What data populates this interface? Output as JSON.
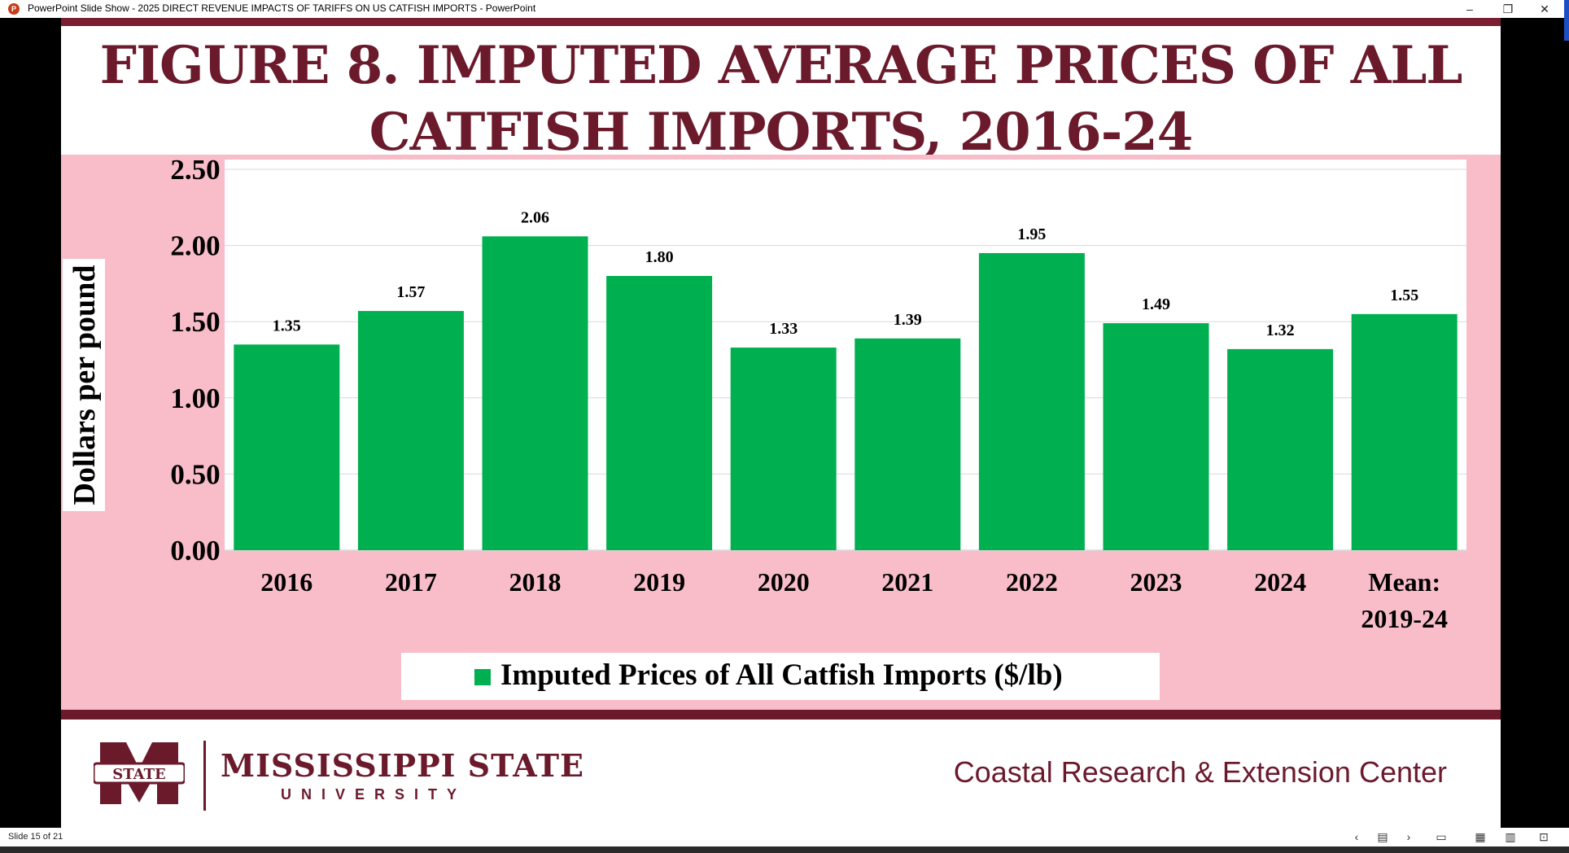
{
  "window": {
    "app_icon_letter": "P",
    "title": "PowerPoint Slide Show  -  2025 DIRECT REVENUE IMPACTS OF TARIFFS ON US CATFISH IMPORTS - PowerPoint",
    "minimize": "–",
    "restore": "❐",
    "close": "✕"
  },
  "slide": {
    "title_line1": "FIGURE 8. IMPUTED AVERAGE PRICES OF ALL",
    "title_line2": "CATFISH IMPORTS, 2016-24",
    "footer": {
      "university_name": "MISSISSIPPI STATE",
      "university_sub": "UNIVERSITY",
      "logo_text": "STATE",
      "center_name": "Coastal Research & Extension Center"
    },
    "colors": {
      "maroon": "#6b1a2c",
      "panel": "#f8bdc9",
      "bar": "#00b050"
    }
  },
  "chart_data": {
    "type": "bar",
    "categories": [
      "2016",
      "2017",
      "2018",
      "2019",
      "2020",
      "2021",
      "2022",
      "2023",
      "2024",
      "Mean: 2019-24"
    ],
    "category_lines": [
      [
        "2016"
      ],
      [
        "2017"
      ],
      [
        "2018"
      ],
      [
        "2019"
      ],
      [
        "2020"
      ],
      [
        "2021"
      ],
      [
        "2022"
      ],
      [
        "2023"
      ],
      [
        "2024"
      ],
      [
        "Mean:",
        "2019-24"
      ]
    ],
    "series": [
      {
        "name": "Imputed Prices of All Catfish Imports ($/lb)",
        "values": [
          1.35,
          1.57,
          2.06,
          1.8,
          1.33,
          1.39,
          1.95,
          1.49,
          1.32,
          1.55
        ]
      }
    ],
    "value_labels": [
      "1.35",
      "1.57",
      "2.06",
      "1.80",
      "1.33",
      "1.39",
      "1.95",
      "1.49",
      "1.32",
      "1.55"
    ],
    "ylabel": "Dollars per pound",
    "ylim": [
      0,
      2.5
    ],
    "yticks": [
      "0.00",
      "0.50",
      "1.00",
      "1.50",
      "2.00",
      "2.50"
    ],
    "ytick_values": [
      0,
      0.5,
      1.0,
      1.5,
      2.0,
      2.5
    ],
    "grid": true,
    "legend_position": "bottom"
  },
  "status": {
    "slide_counter": "Slide 15 of 21",
    "icons": [
      "previous-icon",
      "menu-icon",
      "next-icon",
      "normal-view-icon",
      "slide-sorter-icon",
      "reading-view-icon",
      "slideshow-icon"
    ]
  }
}
